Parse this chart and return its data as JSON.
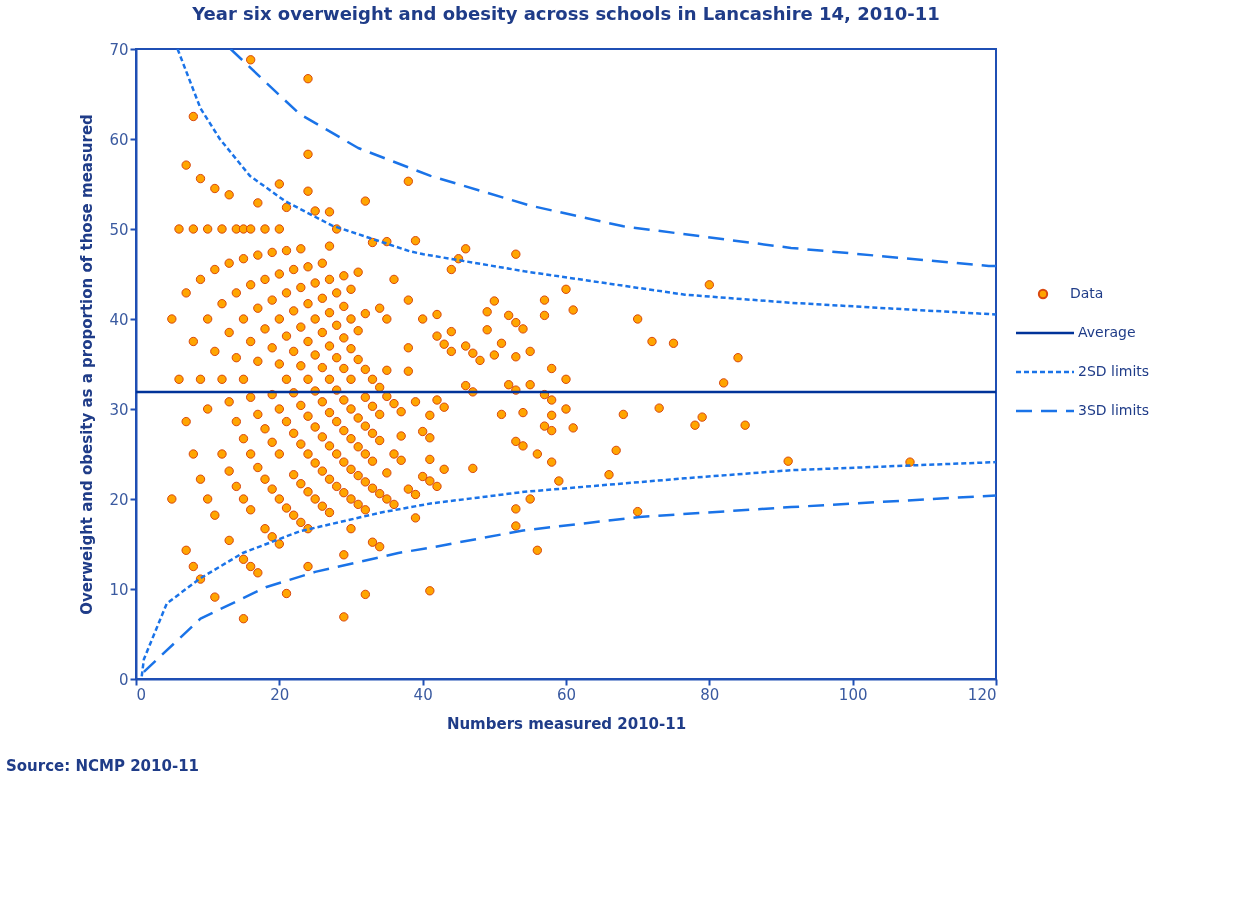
{
  "chart_data": {
    "type": "scatter",
    "title": "Year six overweight and obesity across schools in Lancashire 14, 2010-11",
    "xlabel": "Numbers measured 2010-11",
    "ylabel": "Overweight and obesity as a proportion of those measured",
    "annotations": [
      "Source: NCMP 2010-11"
    ],
    "xlim": [
      0,
      120
    ],
    "ylim": [
      0,
      70
    ],
    "xticks": [
      0,
      20,
      40,
      60,
      80,
      100,
      120
    ],
    "yticks": [
      0,
      10,
      20,
      30,
      40,
      50,
      60,
      70
    ],
    "legend": "right",
    "series": [
      {
        "name": "Data",
        "color": "#ffa500",
        "marker": "circle",
        "x": [
          5,
          5,
          6,
          6,
          7,
          7,
          7,
          7,
          8,
          8,
          8,
          8,
          8,
          9,
          9,
          9,
          9,
          9,
          10,
          10,
          10,
          10,
          11,
          11,
          11,
          11,
          11,
          12,
          12,
          12,
          12,
          13,
          13,
          13,
          13,
          13,
          13,
          14,
          14,
          14,
          14,
          14,
          15,
          15,
          15,
          15,
          15,
          15,
          15,
          15,
          16,
          16,
          16,
          16,
          16,
          16,
          16,
          16,
          17,
          17,
          17,
          17,
          17,
          17,
          17,
          18,
          18,
          18,
          18,
          18,
          18,
          19,
          19,
          19,
          19,
          19,
          19,
          19,
          20,
          20,
          20,
          20,
          20,
          20,
          20,
          20,
          20,
          21,
          21,
          21,
          21,
          21,
          21,
          21,
          21,
          22,
          22,
          22,
          22,
          22,
          22,
          22,
          23,
          23,
          23,
          23,
          23,
          23,
          23,
          23,
          24,
          24,
          24,
          24,
          24,
          24,
          24,
          24,
          24,
          24,
          24,
          24,
          25,
          25,
          25,
          25,
          25,
          25,
          25,
          25,
          26,
          26,
          26,
          26,
          26,
          26,
          26,
          26,
          27,
          27,
          27,
          27,
          27,
          27,
          27,
          27,
          27,
          27,
          28,
          28,
          28,
          28,
          28,
          28,
          28,
          28,
          29,
          29,
          29,
          29,
          29,
          29,
          29,
          29,
          29,
          29,
          30,
          30,
          30,
          30,
          30,
          30,
          30,
          30,
          30,
          31,
          31,
          31,
          31,
          31,
          31,
          31,
          32,
          32,
          32,
          32,
          32,
          32,
          32,
          32,
          32,
          33,
          33,
          33,
          33,
          33,
          33,
          33,
          34,
          34,
          34,
          34,
          34,
          34,
          35,
          35,
          35,
          35,
          35,
          35,
          36,
          36,
          36,
          36,
          37,
          37,
          37,
          38,
          38,
          38,
          38,
          38,
          39,
          39,
          39,
          39,
          40,
          40,
          40,
          41,
          41,
          41,
          41,
          41,
          42,
          42,
          42,
          42,
          43,
          43,
          43,
          44,
          44,
          44,
          45,
          46,
          46,
          46,
          47,
          47,
          47,
          48,
          49,
          49,
          50,
          50,
          51,
          51,
          52,
          52,
          53,
          53,
          53,
          53,
          53,
          53,
          53,
          54,
          54,
          54,
          55,
          55,
          55,
          56,
          56,
          57,
          57,
          57,
          57,
          58,
          58,
          58,
          58,
          58,
          59,
          60,
          60,
          60,
          61,
          61,
          66,
          67,
          68,
          70,
          70,
          72,
          73,
          75,
          78,
          79,
          80,
          82,
          84,
          85,
          91,
          108
        ],
        "values": [
          40,
          20,
          33.3,
          50,
          57.1,
          42.9,
          28.6,
          14.3,
          62.5,
          50,
          37.5,
          25,
          12.5,
          55.6,
          44.4,
          33.3,
          22.2,
          11.1,
          50,
          40,
          30,
          20,
          54.5,
          45.5,
          36.4,
          18.2,
          9.1,
          50,
          41.7,
          33.3,
          25,
          53.8,
          46.2,
          38.5,
          30.8,
          23.1,
          15.4,
          50,
          42.9,
          35.7,
          28.6,
          21.4,
          50,
          46.7,
          40,
          33.3,
          26.7,
          20,
          13.3,
          6.7,
          68.8,
          50,
          43.8,
          37.5,
          31.3,
          25,
          18.8,
          12.5,
          52.9,
          47.1,
          41.2,
          35.3,
          29.4,
          23.5,
          11.8,
          50,
          44.4,
          38.9,
          27.8,
          22.2,
          16.7,
          47.4,
          42.1,
          36.8,
          31.6,
          26.3,
          21.1,
          15.8,
          55,
          50,
          45,
          40,
          35,
          30,
          25,
          20,
          15,
          52.4,
          47.6,
          42.9,
          38.1,
          33.3,
          28.6,
          19,
          9.5,
          45.5,
          40.9,
          36.4,
          31.8,
          27.3,
          22.7,
          18.2,
          47.8,
          43.5,
          39.1,
          34.8,
          30.4,
          26.1,
          21.7,
          17.4,
          66.7,
          58.3,
          54.2,
          45.8,
          41.7,
          37.5,
          33.3,
          29.2,
          25,
          20.8,
          16.7,
          12.5,
          52,
          44,
          40,
          36,
          32,
          28,
          24,
          20,
          46.2,
          42.3,
          38.5,
          34.6,
          30.8,
          26.9,
          23.1,
          19.2,
          51.9,
          48.1,
          44.4,
          40.7,
          37,
          33.3,
          29.6,
          25.9,
          22.2,
          18.5,
          50,
          42.9,
          39.3,
          35.7,
          32.1,
          28.6,
          25,
          21.4,
          44.8,
          41.4,
          37.9,
          34.5,
          31,
          27.6,
          24.1,
          20.7,
          13.8,
          6.9,
          43.3,
          40,
          36.7,
          33.3,
          30,
          26.7,
          23.3,
          20,
          16.7,
          45.2,
          38.7,
          35.5,
          29,
          25.8,
          22.6,
          19.4,
          53.1,
          40.6,
          34.4,
          31.3,
          28.1,
          25,
          21.9,
          18.8,
          9.4,
          48.5,
          33.3,
          30.3,
          27.3,
          24.2,
          21.2,
          15.2,
          41.2,
          32.4,
          29.4,
          26.5,
          20.6,
          14.7,
          48.6,
          40,
          34.3,
          31.4,
          22.9,
          20,
          44.4,
          30.6,
          25,
          19.4,
          29.7,
          27,
          24.3,
          55.3,
          42.1,
          36.8,
          34.2,
          21.1,
          48.7,
          30.8,
          20.5,
          17.9,
          40,
          27.5,
          22.5,
          29.3,
          26.8,
          24.4,
          22,
          9.8,
          40.5,
          38.1,
          31,
          21.4,
          37.2,
          30.2,
          23.3,
          45.5,
          38.6,
          36.4,
          46.7,
          47.8,
          37,
          32.6,
          36.2,
          31.9,
          23.4,
          35.4,
          40.8,
          38.8,
          42,
          36,
          29.4,
          37.3,
          40.4,
          32.7,
          47.2,
          39.6,
          35.8,
          32.1,
          26.4,
          18.9,
          17,
          38.9,
          29.6,
          25.9,
          36.4,
          32.7,
          20,
          25,
          14.3,
          42.1,
          40.4,
          31.6,
          28.1,
          34.5,
          31,
          29.3,
          27.6,
          24.1,
          22,
          43.3,
          33.3,
          30,
          41,
          27.9,
          22.7,
          25.4,
          29.4,
          40,
          18.6,
          37.5,
          30.1,
          37.3,
          28.2,
          29.1,
          43.8,
          32.9,
          35.7,
          28.2,
          24.2,
          24.1
        ]
      },
      {
        "name": "Average",
        "type": "line",
        "color": "#003399",
        "line_style": "solid",
        "x": [
          0,
          120
        ],
        "values": [
          31.9,
          31.9
        ]
      },
      {
        "name": "2SD limits",
        "type": "line",
        "color": "#1a73e8",
        "line_style": "dotted",
        "x": [
          5.8,
          9,
          11.7,
          15.9,
          20.8,
          27.3,
          38.3,
          40.1,
          54.2,
          76.6,
          91.4,
          120
        ],
        "values": [
          70,
          63.4,
          60,
          55.9,
          53.1,
          50.4,
          47.5,
          47.2,
          45.3,
          42.7,
          41.8,
          40.5
        ]
      },
      {
        "type": "line",
        "color": "#1a73e8",
        "line_style": "dotted",
        "x": [
          0.8,
          1.1,
          4.3,
          9,
          14.9,
          22.8,
          34.2,
          41.1,
          54.2,
          76.6,
          91.4,
          120
        ],
        "values": [
          0.3,
          2.2,
          8.4,
          11.2,
          14,
          16.4,
          18.5,
          19.5,
          20.8,
          22.3,
          23.2,
          24.1
        ]
      },
      {
        "name": "3SD limits",
        "type": "line",
        "color": "#1a73e8",
        "line_style": "dashed",
        "x": [
          13.2,
          18.1,
          22.8,
          31,
          41.1,
          55,
          68,
          91.4,
          119,
          120
        ],
        "values": [
          70,
          66.3,
          62.8,
          59,
          55.9,
          52.6,
          50.3,
          47.9,
          45.9,
          45.9
        ]
      },
      {
        "type": "line",
        "color": "#1a73e8",
        "line_style": "dashed",
        "x": [
          1.1,
          9,
          18.1,
          25,
          36.6,
          41.1,
          54,
          70.2,
          91.4,
          120
        ],
        "values": [
          0.8,
          6.7,
          10.2,
          11.9,
          14,
          14.6,
          16.5,
          18,
          19.1,
          20.4
        ]
      }
    ]
  }
}
